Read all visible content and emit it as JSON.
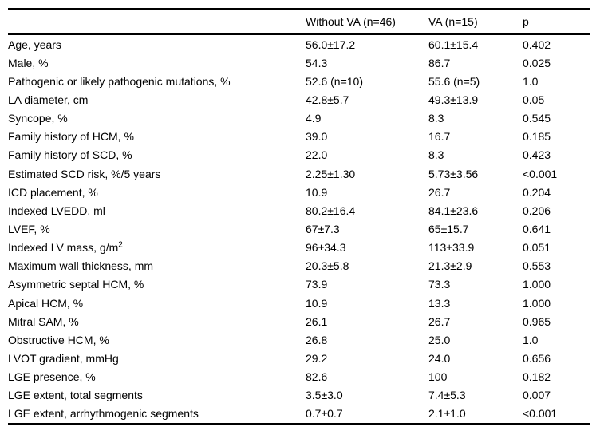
{
  "colors": {
    "background": "#ffffff",
    "text": "#000000",
    "border": "#000000"
  },
  "table": {
    "columns": [
      "",
      "Without VA (n=46)",
      "VA (n=15)",
      "p"
    ],
    "rows": [
      {
        "label": "Age, years",
        "values": [
          "56.0±17.2",
          "60.1±15.4",
          "0.402"
        ]
      },
      {
        "label": "Male, %",
        "values": [
          "54.3",
          "86.7",
          "0.025"
        ]
      },
      {
        "label": "Pathogenic or likely pathogenic mutations, %",
        "values": [
          "52.6 (n=10)",
          "55.6 (n=5)",
          "1.0"
        ]
      },
      {
        "label": "LA diameter, cm",
        "values": [
          "42.8±5.7",
          "49.3±13.9",
          "0.05"
        ]
      },
      {
        "label": "Syncope, %",
        "values": [
          "4.9",
          "8.3",
          "0.545"
        ]
      },
      {
        "label": "Family history of HCM, %",
        "values": [
          "39.0",
          "16.7",
          "0.185"
        ]
      },
      {
        "label": "Family history of SCD, %",
        "values": [
          "22.0",
          "8.3",
          "0.423"
        ]
      },
      {
        "label": "Estimated SCD risk, %/5 years",
        "values": [
          "2.25±1.30",
          "5.73±3.56",
          "<0.001"
        ]
      },
      {
        "label": "ICD placement, %",
        "values": [
          "10.9",
          "26.7",
          "0.204"
        ]
      },
      {
        "label": "Indexed LVEDD, ml",
        "values": [
          "80.2±16.4",
          "84.1±23.6",
          "0.206"
        ]
      },
      {
        "label": "LVEF, %",
        "values": [
          "67±7.3",
          "65±15.7",
          "0.641"
        ]
      },
      {
        "label": "Indexed LV mass, g/m",
        "label_sup": "2",
        "values": [
          "96±34.3",
          "113±33.9",
          "0.051"
        ]
      },
      {
        "label": "Maximum wall thickness, mm",
        "values": [
          "20.3±5.8",
          "21.3±2.9",
          "0.553"
        ]
      },
      {
        "label": "Asymmetric septal HCM, %",
        "values": [
          "73.9",
          "73.3",
          "1.000"
        ]
      },
      {
        "label": "Apical HCM, %",
        "values": [
          "10.9",
          "13.3",
          "1.000"
        ]
      },
      {
        "label": "Mitral SAM, %",
        "values": [
          "26.1",
          "26.7",
          "0.965"
        ]
      },
      {
        "label": "Obstructive HCM, %",
        "values": [
          "26.8",
          "25.0",
          "1.0"
        ]
      },
      {
        "label": "LVOT gradient, mmHg",
        "values": [
          "29.2",
          "24.0",
          "0.656"
        ]
      },
      {
        "label": "LGE presence, %",
        "values": [
          "82.6",
          "100",
          "0.182"
        ]
      },
      {
        "label": "LGE extent, total segments",
        "values": [
          "3.5±3.0",
          "7.4±5.3",
          "0.007"
        ]
      },
      {
        "label": "LGE extent, arrhythmogenic segments",
        "values": [
          "0.7±0.7",
          "2.1±1.0",
          "<0.001"
        ]
      }
    ]
  }
}
